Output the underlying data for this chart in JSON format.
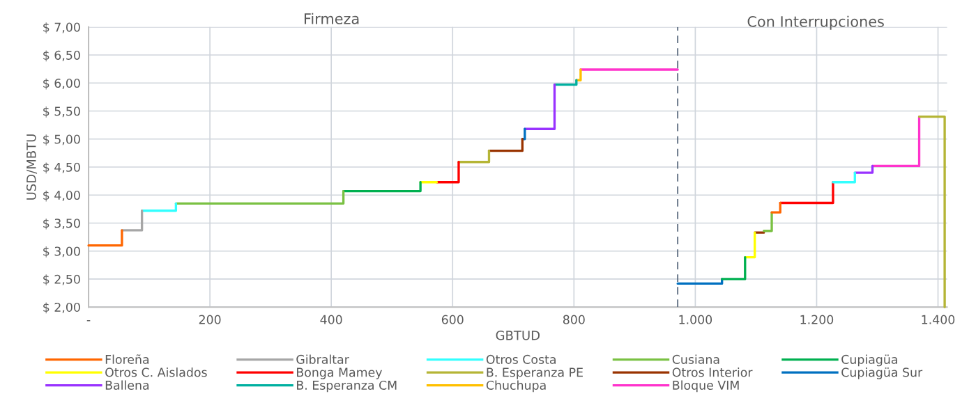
{
  "chart_data": {
    "type": "line",
    "xlabel": "GBTUD",
    "ylabel": "USD/MBTU",
    "annotations": [
      "Firmeza",
      "Con Interrupciones"
    ],
    "xlim": [
      0,
      1415
    ],
    "ylim": [
      2,
      7
    ],
    "xticks": [
      {
        "value": 0,
        "label": "-"
      },
      200,
      400,
      600,
      800,
      {
        "value": 1000,
        "label": "1.000"
      },
      {
        "value": 1200,
        "label": "1.200"
      },
      {
        "value": 1400,
        "label": "1.400"
      }
    ],
    "yticks": [
      {
        "value": 2,
        "label": "$ 2,00"
      },
      {
        "value": 2.5,
        "label": "$ 2,50"
      },
      {
        "value": 3,
        "label": "$ 3,00"
      },
      {
        "value": 3.5,
        "label": "$ 3,50"
      },
      {
        "value": 4,
        "label": "$ 4,00"
      },
      {
        "value": 4.5,
        "label": "$ 4,50"
      },
      {
        "value": 5,
        "label": "$ 5,00"
      },
      {
        "value": 5.5,
        "label": "$ 5,50"
      },
      {
        "value": 6,
        "label": "$ 6,00"
      },
      {
        "value": 6.5,
        "label": "$ 6,50"
      },
      {
        "value": 7,
        "label": "$ 7,00"
      }
    ],
    "grid": true,
    "legend": "bottom",
    "marker": "none",
    "line_style": "solid",
    "ref_lines": [
      {
        "axis": "x",
        "value": 971,
        "label": null,
        "color": "#5a6a7e",
        "line_style": "dashed"
      }
    ],
    "series": [
      {
        "name": "Floreña",
        "color": "#ff6600",
        "x": [
          0,
          55,
          55,
          null,
          1126,
          1140,
          1140
        ],
        "values": [
          3.1,
          3.1,
          3.37,
          null,
          3.69,
          3.69,
          3.86
        ]
      },
      {
        "name": "Gibraltar",
        "color": "#a6a6a6",
        "x": [
          55,
          88,
          88
        ],
        "values": [
          3.37,
          3.37,
          3.72
        ]
      },
      {
        "name": "Otros Costa",
        "color": "#33ffff",
        "x": [
          88,
          144,
          144,
          null,
          1227,
          1263,
          1263
        ],
        "values": [
          3.72,
          3.72,
          3.85,
          null,
          4.23,
          4.23,
          4.4
        ]
      },
      {
        "name": "Cusiana",
        "color": "#7ac143",
        "x": [
          144,
          420,
          420,
          null,
          1113,
          1126,
          1126
        ],
        "values": [
          3.85,
          3.85,
          4.07,
          null,
          3.36,
          3.36,
          3.69
        ]
      },
      {
        "name": "Cupiagüa",
        "color": "#00b050",
        "x": [
          420,
          547,
          547,
          null,
          1044,
          1082,
          1082
        ],
        "values": [
          4.07,
          4.07,
          4.23,
          null,
          2.5,
          2.5,
          2.89
        ]
      },
      {
        "name": "Otros C. Aislados",
        "color": "#ffff00",
        "x": [
          547,
          574,
          null,
          1082,
          1098,
          1098
        ],
        "values": [
          4.23,
          4.23,
          null,
          2.89,
          2.89,
          3.33
        ]
      },
      {
        "name": "Bonga Mamey",
        "color": "#ff0000",
        "x": [
          574,
          610,
          610,
          null,
          1140,
          1227,
          1227
        ],
        "values": [
          4.23,
          4.23,
          4.59,
          null,
          3.86,
          3.86,
          4.23
        ]
      },
      {
        "name": "B. Esperanza PE",
        "color": "#b5b536",
        "x": [
          610,
          660,
          660,
          null,
          1369,
          1411,
          1411
        ],
        "values": [
          4.59,
          4.59,
          4.79,
          null,
          5.4,
          5.4,
          2.0
        ]
      },
      {
        "name": "Otros Interior",
        "color": "#993300",
        "x": [
          660,
          715,
          715,
          null,
          1098,
          1113
        ],
        "values": [
          4.79,
          4.79,
          5.0,
          null,
          3.33,
          3.33
        ]
      },
      {
        "name": "Cupiagüa Sur",
        "color": "#0070c0",
        "x": [
          715,
          719,
          719,
          null,
          971,
          1044,
          1044
        ],
        "values": [
          5.0,
          5.0,
          5.18,
          null,
          2.42,
          2.42,
          2.5
        ]
      },
      {
        "name": "Ballena",
        "color": "#9933ff",
        "x": [
          719,
          768,
          768,
          null,
          1263,
          1292,
          1292
        ],
        "values": [
          5.18,
          5.18,
          5.97,
          null,
          4.4,
          4.4,
          4.52
        ]
      },
      {
        "name": "B. Esperanza CM",
        "color": "#00b0a0",
        "x": [
          768,
          804,
          804
        ],
        "values": [
          5.97,
          5.97,
          6.05
        ]
      },
      {
        "name": "Chuchupa",
        "color": "#ffc000",
        "x": [
          804,
          811,
          811
        ],
        "values": [
          6.05,
          6.05,
          6.24
        ]
      },
      {
        "name": "Bloque VIM",
        "color": "#ff33cc",
        "x": [
          811,
          971,
          null,
          1292,
          1369,
          1369
        ],
        "values": [
          6.24,
          6.24,
          null,
          4.52,
          4.52,
          5.4
        ]
      }
    ]
  }
}
